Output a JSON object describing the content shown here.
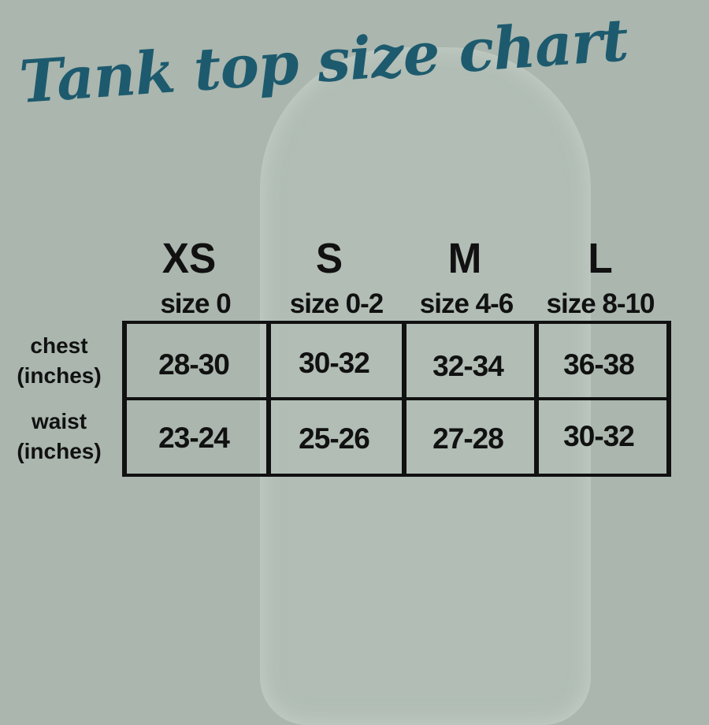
{
  "title": "Tank top size chart",
  "sizes": [
    {
      "label": "XS",
      "sub": "size 0"
    },
    {
      "label": "S",
      "sub": "size 0-2"
    },
    {
      "label": "M",
      "sub": "size 4-6"
    },
    {
      "label": "L",
      "sub": "size 8-10"
    }
  ],
  "rows": [
    {
      "label": "chest",
      "unit": "(inches)",
      "values": [
        "28-30",
        "30-32",
        "32-34",
        "36-38"
      ]
    },
    {
      "label": "waist",
      "unit": "(inches)",
      "values": [
        "23-24",
        "25-26",
        "27-28",
        "30-32"
      ]
    }
  ],
  "colors": {
    "title": "#1d5a6e",
    "background": "#aab6ae",
    "text": "#111111"
  }
}
